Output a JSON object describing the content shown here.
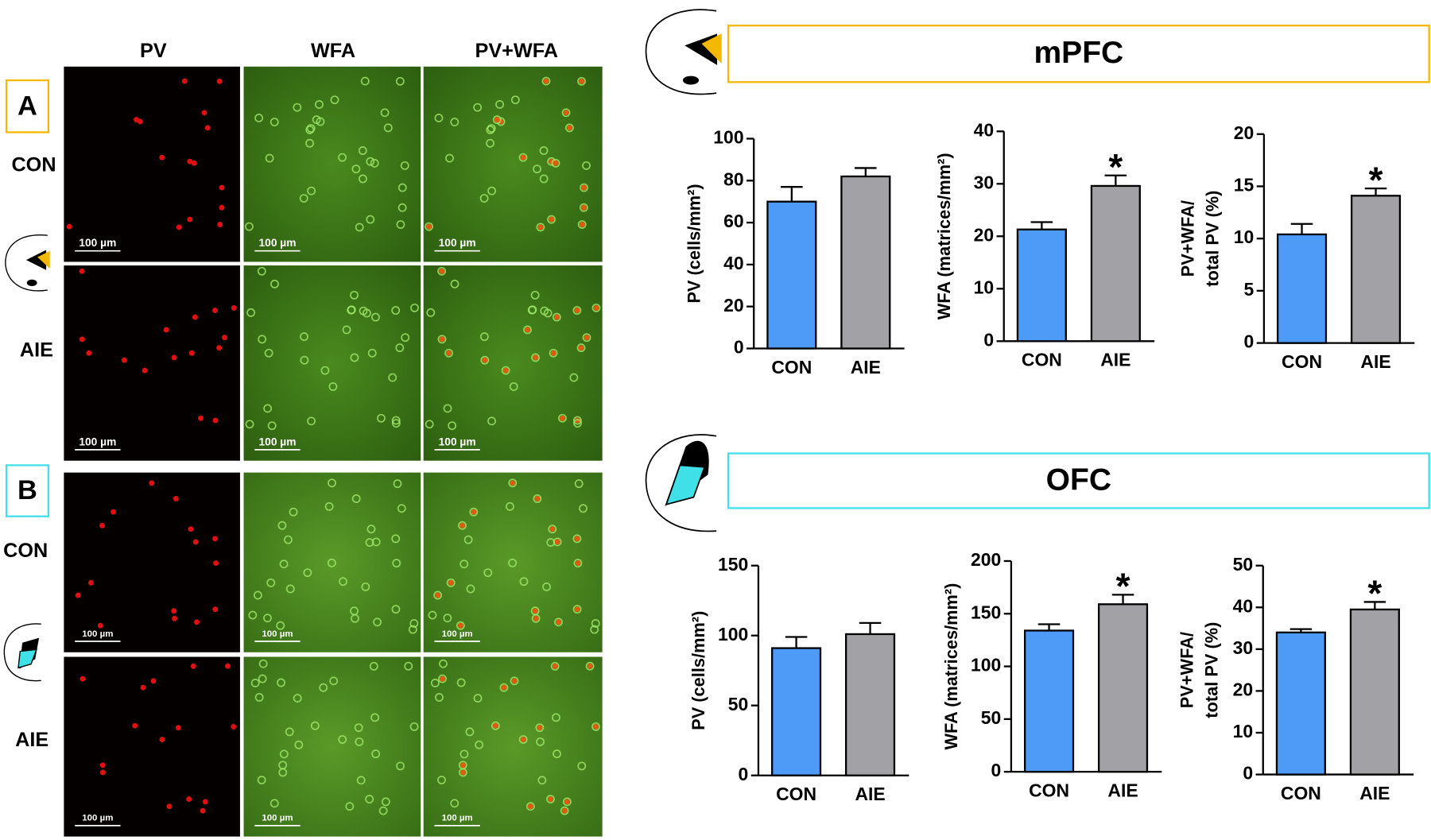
{
  "figure": {
    "panels": [
      {
        "label": "A",
        "region": "mPFC"
      },
      {
        "label": "B",
        "region": "OFC"
      }
    ],
    "columns": [
      "PV",
      "WFA",
      "PV+WFA"
    ],
    "rows": [
      "CON",
      "AIE"
    ],
    "scale_bar": "100 µm"
  },
  "chart_data": [
    {
      "type": "bar",
      "ylabel": "PV (cells/mm²)",
      "categories": [
        "CON",
        "AIE"
      ],
      "values": [
        70,
        82
      ],
      "errors": [
        7,
        4
      ],
      "colors": [
        "#4d9bf7",
        "#a2a2a6"
      ],
      "ylim": [
        0,
        100
      ],
      "yticks": [
        0,
        20,
        40,
        60,
        80,
        100
      ]
    },
    {
      "type": "bar",
      "ylabel": "WFA (matrices/mm²)",
      "categories": [
        "CON",
        "AIE"
      ],
      "values": [
        21.3,
        29.6
      ],
      "errors": [
        1.4,
        2
      ],
      "colors": [
        "#4d9bf7",
        "#a2a2a6"
      ],
      "ylim": [
        0,
        40
      ],
      "yticks": [
        0,
        10,
        20,
        30,
        40
      ],
      "annotations": [
        {
          "text": "*",
          "x": "AIE"
        }
      ]
    },
    {
      "type": "bar",
      "ylabel": [
        "PV+WFA/",
        "total PV (%)"
      ],
      "categories": [
        "CON",
        "AIE"
      ],
      "values": [
        10.4,
        14.1
      ],
      "errors": [
        1,
        0.7
      ],
      "colors": [
        "#4d9bf7",
        "#a2a2a6"
      ],
      "ylim": [
        0,
        20
      ],
      "yticks": [
        0,
        5,
        10,
        15,
        20
      ],
      "annotations": [
        {
          "text": "*",
          "x": "AIE"
        }
      ]
    },
    {
      "type": "bar",
      "ylabel": "PV (cells/mm²)",
      "categories": [
        "CON",
        "AIE"
      ],
      "values": [
        91,
        101
      ],
      "errors": [
        8,
        8
      ],
      "colors": [
        "#4d9bf7",
        "#a2a2a6"
      ],
      "ylim": [
        0,
        150
      ],
      "yticks": [
        0,
        50,
        100,
        150
      ]
    },
    {
      "type": "bar",
      "ylabel": "WFA (matrices/mm²)",
      "categories": [
        "CON",
        "AIE"
      ],
      "values": [
        134,
        159
      ],
      "errors": [
        6,
        9
      ],
      "colors": [
        "#4d9bf7",
        "#a2a2a6"
      ],
      "ylim": [
        0,
        200
      ],
      "yticks": [
        0,
        50,
        100,
        150,
        200
      ],
      "annotations": [
        {
          "text": "*",
          "x": "AIE"
        }
      ]
    },
    {
      "type": "bar",
      "ylabel": [
        "PV+WFA/",
        "total PV (%)"
      ],
      "categories": [
        "CON",
        "AIE"
      ],
      "values": [
        34,
        39.5
      ],
      "errors": [
        0.8,
        1.8
      ],
      "colors": [
        "#4d9bf7",
        "#a2a2a6"
      ],
      "ylim": [
        0,
        50
      ],
      "yticks": [
        0,
        10,
        20,
        30,
        40,
        50
      ],
      "annotations": [
        {
          "text": "*",
          "x": "AIE"
        }
      ]
    }
  ]
}
